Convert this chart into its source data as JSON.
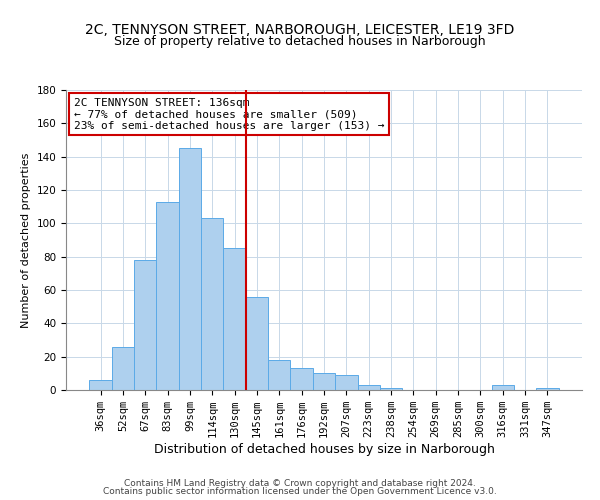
{
  "title": "2C, TENNYSON STREET, NARBOROUGH, LEICESTER, LE19 3FD",
  "subtitle": "Size of property relative to detached houses in Narborough",
  "xlabel": "Distribution of detached houses by size in Narborough",
  "ylabel": "Number of detached properties",
  "categories": [
    "36sqm",
    "52sqm",
    "67sqm",
    "83sqm",
    "99sqm",
    "114sqm",
    "130sqm",
    "145sqm",
    "161sqm",
    "176sqm",
    "192sqm",
    "207sqm",
    "223sqm",
    "238sqm",
    "254sqm",
    "269sqm",
    "285sqm",
    "300sqm",
    "316sqm",
    "331sqm",
    "347sqm"
  ],
  "values": [
    6,
    26,
    78,
    113,
    145,
    103,
    85,
    56,
    18,
    13,
    10,
    9,
    3,
    1,
    0,
    0,
    0,
    0,
    3,
    0,
    1
  ],
  "bar_color": "#aed0ee",
  "bar_edge_color": "#5baae7",
  "vline_x": 6.5,
  "vline_color": "#cc0000",
  "annotation_title": "2C TENNYSON STREET: 136sqm",
  "annotation_line1": "← 77% of detached houses are smaller (509)",
  "annotation_line2": "23% of semi-detached houses are larger (153) →",
  "annotation_box_color": "#ffffff",
  "annotation_box_edge": "#cc0000",
  "ylim": [
    0,
    180
  ],
  "yticks": [
    0,
    20,
    40,
    60,
    80,
    100,
    120,
    140,
    160,
    180
  ],
  "footer_line1": "Contains HM Land Registry data © Crown copyright and database right 2024.",
  "footer_line2": "Contains public sector information licensed under the Open Government Licence v3.0.",
  "title_fontsize": 10,
  "subtitle_fontsize": 9,
  "xlabel_fontsize": 9,
  "ylabel_fontsize": 8,
  "tick_fontsize": 7.5,
  "footer_fontsize": 6.5,
  "annotation_fontsize": 8
}
